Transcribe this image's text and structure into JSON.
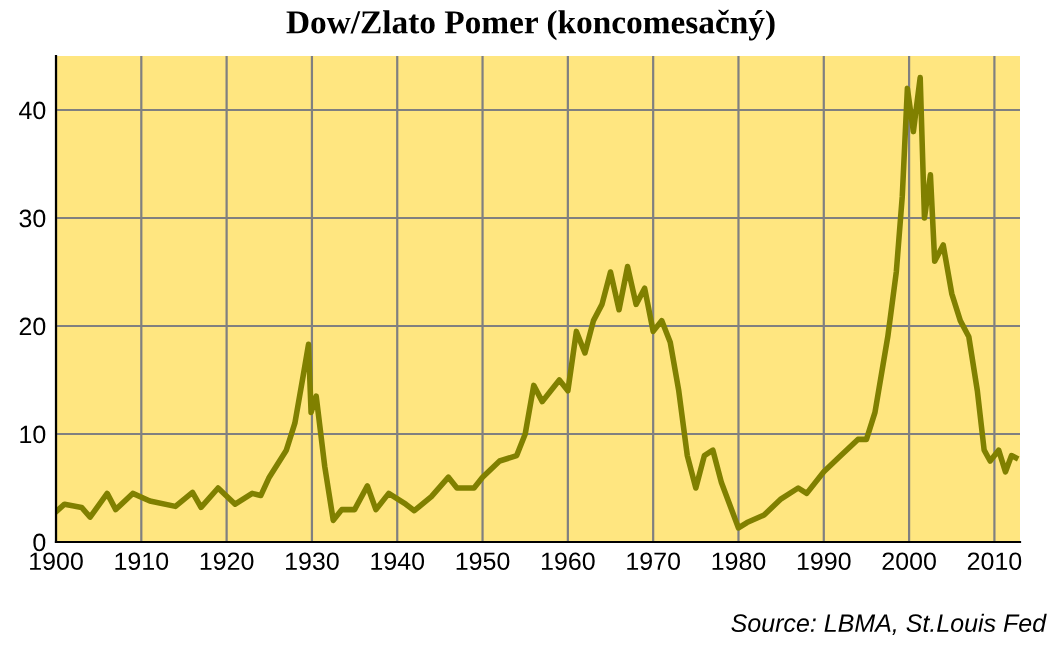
{
  "chart_data": {
    "type": "line",
    "title": "Dow/Zlato Pomer (koncomesačný)",
    "x": [
      1900,
      1901,
      1903,
      1904,
      1906,
      1907,
      1909,
      1911,
      1914,
      1916,
      1917,
      1919,
      1921,
      1923,
      1924,
      1925,
      1927,
      1928,
      1929.0,
      1929.6,
      1929.9,
      1930.5,
      1931.5,
      1932.5,
      1933.5,
      1935,
      1936.5,
      1937.5,
      1939,
      1941,
      1942,
      1944,
      1946,
      1947,
      1949,
      1950,
      1952,
      1954,
      1955,
      1956,
      1957,
      1958,
      1959,
      1960,
      1961,
      1962,
      1963,
      1964,
      1965,
      1966,
      1967,
      1968,
      1969,
      1970,
      1971,
      1972,
      1973,
      1974,
      1975,
      1976,
      1977,
      1978,
      1980,
      1981,
      1983,
      1985,
      1987,
      1988,
      1990,
      1992,
      1994,
      1995,
      1996,
      1997.5,
      1998.5,
      1999.2,
      1999.8,
      2000.5,
      2001.3,
      2001.8,
      2002.5,
      2003,
      2004,
      2005,
      2006,
      2007,
      2008,
      2008.8,
      2009.5,
      2010.5,
      2011.3,
      2012,
      2012.5
    ],
    "series": [
      {
        "color": "#808000",
        "values": [
          2.8,
          3.5,
          3.2,
          2.3,
          4.5,
          3.0,
          4.5,
          3.8,
          3.3,
          4.6,
          3.2,
          5.0,
          3.5,
          4.5,
          4.3,
          6.0,
          8.5,
          11,
          15.5,
          18.3,
          12,
          13.5,
          7,
          2.0,
          3.0,
          3.0,
          5.2,
          3.0,
          4.5,
          3.5,
          2.9,
          4.2,
          6.0,
          5.0,
          5.0,
          6.0,
          7.5,
          8.0,
          10.0,
          14.5,
          13.0,
          14.0,
          15,
          14.0,
          19.5,
          17.5,
          20.5,
          22,
          25.0,
          21.5,
          25.5,
          22.0,
          23.5,
          19.5,
          20.5,
          18.5,
          14,
          8.0,
          5.0,
          8.0,
          8.5,
          5.5,
          1.3,
          1.8,
          2.5,
          4.0,
          5.0,
          4.5,
          6.5,
          8.0,
          9.5,
          9.5,
          12,
          19,
          25,
          32,
          42.0,
          38,
          43.0,
          30,
          34,
          26,
          27.5,
          23,
          20.5,
          19,
          14,
          8.5,
          7.5,
          8.5,
          6.5,
          8.0,
          7.8
        ]
      }
    ],
    "xlim": [
      1900,
      2013
    ],
    "xticks": [
      1900,
      1910,
      1920,
      1930,
      1940,
      1950,
      1960,
      1970,
      1980,
      1990,
      2000,
      2010
    ],
    "ylim": [
      0,
      45
    ],
    "yticks": [
      0,
      10,
      20,
      30,
      40
    ],
    "grid": true,
    "annotations": [
      "Source: LBMA, St.Louis Fed"
    ]
  }
}
